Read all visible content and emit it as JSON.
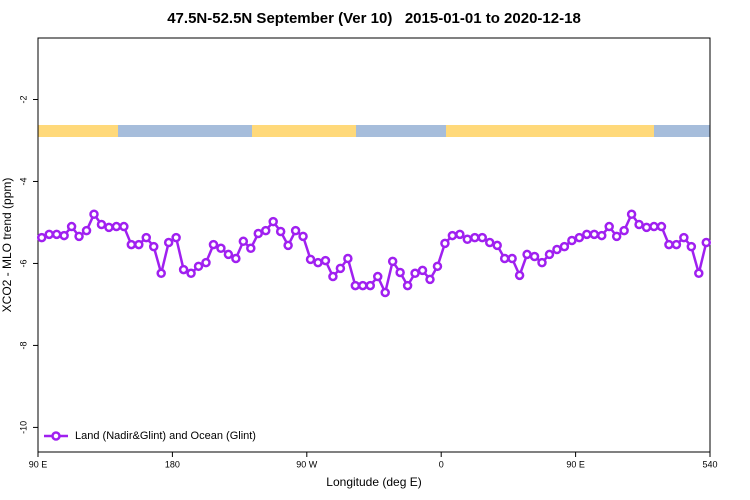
{
  "chart_data": {
    "type": "line",
    "title": "47.5N-52.5N September (Ver 10)   2015-01-01 to 2020-12-18",
    "x_label": "Longitude (deg E)",
    "y_label": "XCO2 - MLO trend (ppm)",
    "x": [
      92.5,
      97.5,
      102.5,
      107.5,
      112.5,
      117.5,
      122.5,
      127.5,
      132.5,
      137.5,
      142.5,
      147.5,
      152.5,
      157.5,
      162.5,
      167.5,
      172.5,
      177.5,
      182.5,
      187.5,
      192.5,
      197.5,
      202.5,
      207.5,
      212.5,
      217.5,
      222.5,
      227.5,
      232.5,
      237.5,
      242.5,
      247.5,
      252.5,
      257.5,
      262.5,
      267.5,
      272.5,
      277.5,
      282.5,
      287.5,
      292.5,
      297.5,
      302.5,
      307.5,
      312.5,
      317.5,
      322.5,
      327.5,
      332.5,
      337.5,
      342.5,
      347.5,
      352.5,
      357.5,
      362.5,
      367.5,
      372.5,
      377.5,
      382.5,
      387.5,
      392.5,
      397.5,
      402.5,
      407.5,
      412.5,
      417.5,
      422.5,
      427.5,
      432.5,
      437.5,
      442.5,
      447.5,
      452.5,
      457.5,
      462.5,
      467.5,
      472.5,
      477.5,
      482.5,
      487.5,
      492.5,
      497.5,
      502.5,
      507.5,
      512.5,
      517.5,
      522.5,
      527.5,
      532.5,
      537.5
    ],
    "series": [
      {
        "name": "Land (Nadir&Glint) and Ocean (Glint)",
        "color": "#a020f0",
        "values": [
          -5.37,
          -5.29,
          -5.29,
          -5.32,
          -5.1,
          -5.34,
          -5.2,
          -4.8,
          -5.05,
          -5.12,
          -5.1,
          -5.1,
          -5.54,
          -5.54,
          -5.37,
          -5.59,
          -6.24,
          -5.49,
          -5.37,
          -6.15,
          -6.24,
          -6.07,
          -5.98,
          -5.54,
          -5.63,
          -5.78,
          -5.88,
          -5.46,
          -5.63,
          -5.27,
          -5.2,
          -4.98,
          -5.22,
          -5.56,
          -5.2,
          -5.34,
          -5.9,
          -5.98,
          -5.93,
          -6.32,
          -6.12,
          -5.88,
          -6.54,
          -6.54,
          -6.54,
          -6.32,
          -6.71,
          -5.95,
          -6.22,
          -6.54,
          -6.24,
          -6.17,
          -6.39,
          -6.07,
          -5.51,
          -5.32,
          -5.29,
          -5.41,
          -5.37,
          -5.37,
          -5.49,
          -5.56,
          -5.88,
          -5.88,
          -6.29,
          -5.78,
          -5.83,
          -5.98,
          -5.78,
          -5.66,
          -5.59,
          -5.44,
          -5.37,
          -5.29,
          -5.29,
          -5.32,
          -5.1,
          -5.34,
          -5.2,
          -4.8,
          -5.05,
          -5.12,
          -5.1,
          -5.1,
          -5.54,
          -5.54,
          -5.37,
          -5.59,
          -6.24,
          -5.49
        ]
      }
    ],
    "xlim": [
      90,
      540
    ],
    "xticks": [
      {
        "value": 90,
        "label": "90 E"
      },
      180,
      {
        "value": 270,
        "label": "90 W"
      },
      {
        "value": 360,
        "label": "0"
      },
      {
        "value": 450,
        "label": "90 E"
      },
      540
    ],
    "ylim": [
      -10.6,
      -0.5
    ],
    "yticks": [
      -2,
      -4,
      -6,
      -8,
      -10
    ],
    "legend": "bottom-left"
  }
}
